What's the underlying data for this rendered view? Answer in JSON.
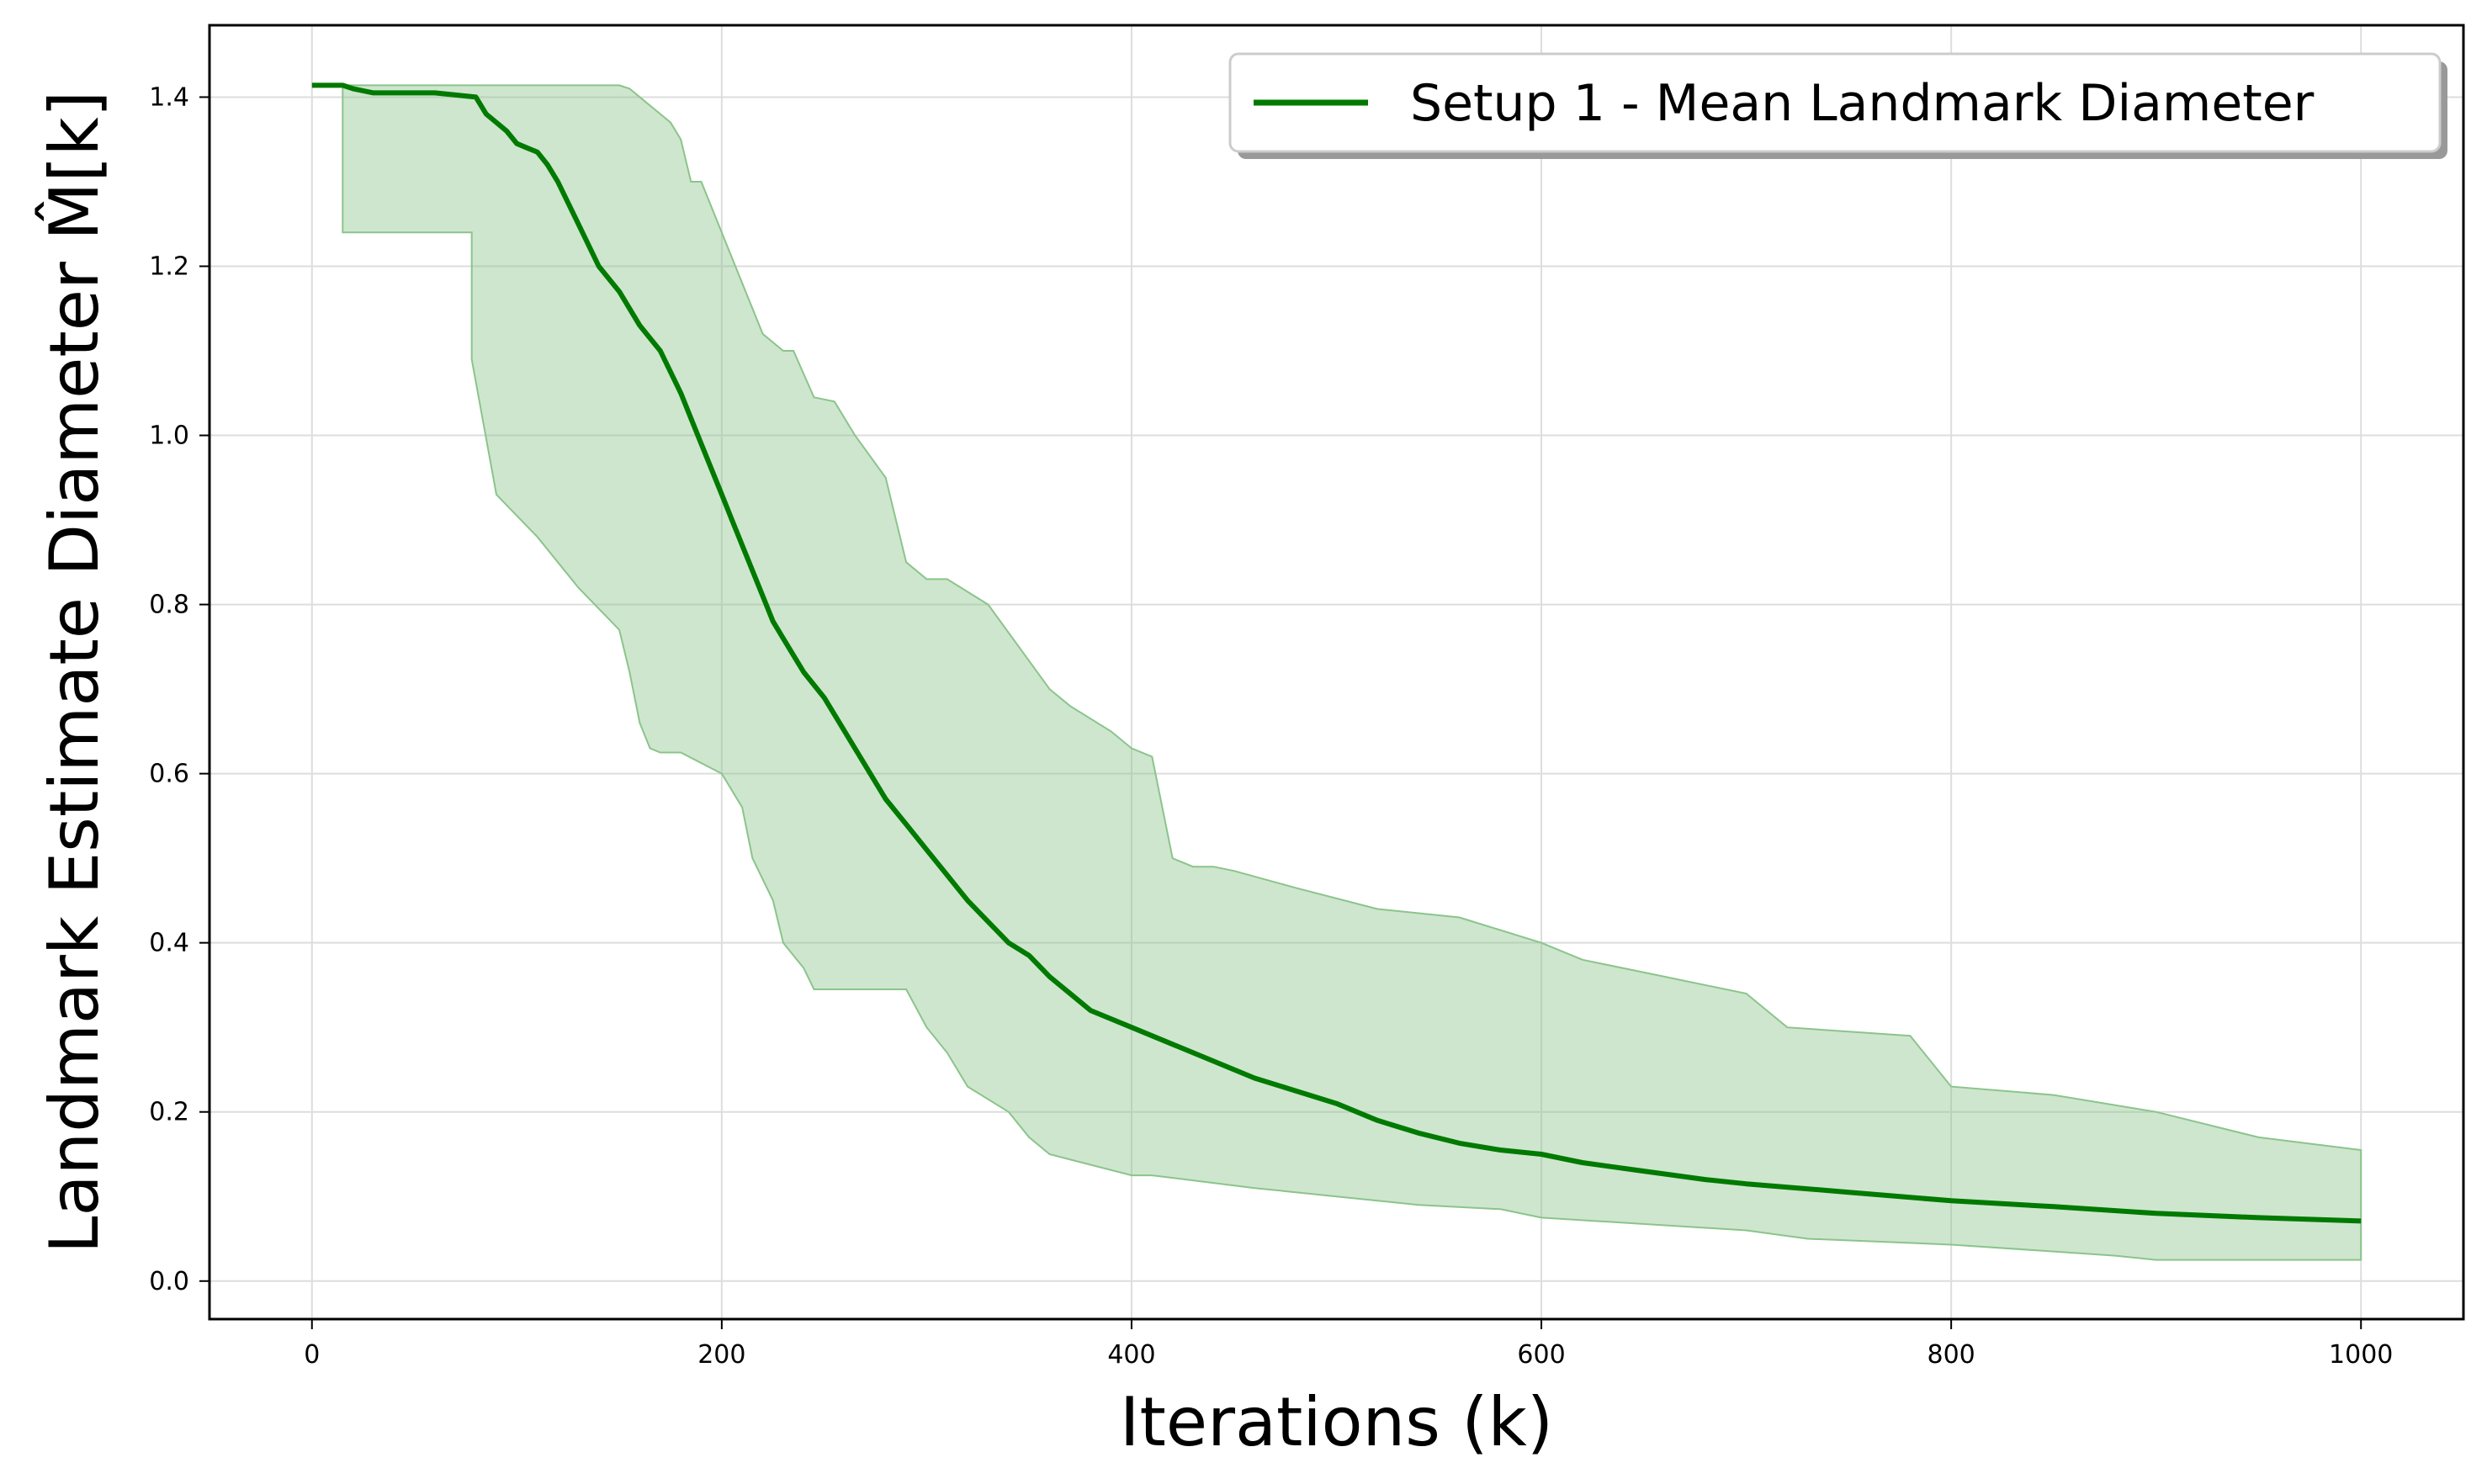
{
  "chart_data": {
    "type": "line",
    "xlabel": "Iterations (k)",
    "ylabel": "Landmark Estimate Diameter M̂[k]",
    "xlim": [
      -50,
      1050
    ],
    "ylim": [
      -0.045,
      1.485
    ],
    "xticks": [
      0,
      200,
      400,
      600,
      800,
      1000
    ],
    "yticks": [
      0.0,
      0.2,
      0.4,
      0.6,
      0.8,
      1.0,
      1.2,
      1.4
    ],
    "xtick_labels": [
      "0",
      "200",
      "400",
      "600",
      "800",
      "1000"
    ],
    "ytick_labels": [
      "0.0",
      "0.2",
      "0.4",
      "0.6",
      "0.8",
      "1.0",
      "1.2",
      "1.4"
    ],
    "grid": true,
    "legend_position": "top-right",
    "colors": {
      "line": "#007a00",
      "band": "#8bc48b"
    },
    "series": [
      {
        "name": "Setup 1 - Mean Landmark Diameter",
        "x": [
          0,
          15,
          20,
          30,
          60,
          80,
          85,
          95,
          100,
          105,
          110,
          115,
          120,
          130,
          140,
          150,
          160,
          170,
          180,
          185,
          190,
          195,
          200,
          205,
          210,
          215,
          220,
          225,
          230,
          235,
          240,
          250,
          260,
          270,
          280,
          290,
          300,
          310,
          320,
          340,
          350,
          360,
          370,
          380,
          400,
          420,
          440,
          460,
          480,
          500,
          520,
          540,
          560,
          580,
          600,
          620,
          650,
          680,
          700,
          750,
          800,
          850,
          900,
          950,
          1000
        ],
        "y": [
          1.414,
          1.414,
          1.41,
          1.405,
          1.405,
          1.4,
          1.38,
          1.36,
          1.345,
          1.34,
          1.335,
          1.32,
          1.3,
          1.25,
          1.2,
          1.17,
          1.13,
          1.1,
          1.05,
          1.02,
          0.99,
          0.96,
          0.93,
          0.9,
          0.87,
          0.84,
          0.81,
          0.78,
          0.76,
          0.74,
          0.72,
          0.69,
          0.65,
          0.61,
          0.57,
          0.54,
          0.51,
          0.48,
          0.45,
          0.4,
          0.385,
          0.36,
          0.34,
          0.32,
          0.3,
          0.28,
          0.26,
          0.24,
          0.225,
          0.21,
          0.19,
          0.175,
          0.163,
          0.155,
          0.15,
          0.14,
          0.13,
          0.12,
          0.115,
          0.105,
          0.095,
          0.088,
          0.08,
          0.075,
          0.071
        ],
        "band_lower": {
          "x": [
            15,
            15,
            78,
            78,
            90,
            110,
            130,
            150,
            155,
            160,
            165,
            170,
            175,
            180,
            200,
            210,
            215,
            225,
            230,
            240,
            245,
            290,
            300,
            310,
            320,
            340,
            350,
            360,
            400,
            410,
            460,
            500,
            540,
            580,
            600,
            700,
            730,
            800,
            850,
            880,
            900,
            1000
          ],
          "y": [
            1.414,
            1.24,
            1.24,
            1.09,
            0.93,
            0.88,
            0.82,
            0.77,
            0.72,
            0.66,
            0.63,
            0.625,
            0.625,
            0.625,
            0.6,
            0.56,
            0.5,
            0.45,
            0.4,
            0.37,
            0.345,
            0.345,
            0.3,
            0.27,
            0.23,
            0.2,
            0.17,
            0.15,
            0.125,
            0.125,
            0.11,
            0.1,
            0.09,
            0.085,
            0.075,
            0.06,
            0.05,
            0.043,
            0.035,
            0.03,
            0.025,
            0.025
          ]
        },
        "band_upper": {
          "x": [
            0,
            100,
            150,
            155,
            160,
            170,
            175,
            180,
            185,
            190,
            215,
            220,
            230,
            235,
            245,
            255,
            265,
            280,
            285,
            290,
            300,
            310,
            330,
            360,
            370,
            390,
            400,
            410,
            420,
            425,
            430,
            440,
            450,
            480,
            520,
            560,
            600,
            620,
            660,
            700,
            720,
            780,
            800,
            850,
            900,
            950,
            1000
          ],
          "y": [
            1.414,
            1.414,
            1.414,
            1.41,
            1.4,
            1.38,
            1.37,
            1.35,
            1.3,
            1.3,
            1.15,
            1.12,
            1.1,
            1.1,
            1.045,
            1.04,
            1.0,
            0.95,
            0.9,
            0.85,
            0.83,
            0.83,
            0.8,
            0.7,
            0.68,
            0.65,
            0.63,
            0.62,
            0.5,
            0.495,
            0.49,
            0.49,
            0.485,
            0.465,
            0.44,
            0.43,
            0.4,
            0.38,
            0.36,
            0.34,
            0.3,
            0.29,
            0.23,
            0.22,
            0.2,
            0.17,
            0.155
          ]
        }
      }
    ]
  }
}
